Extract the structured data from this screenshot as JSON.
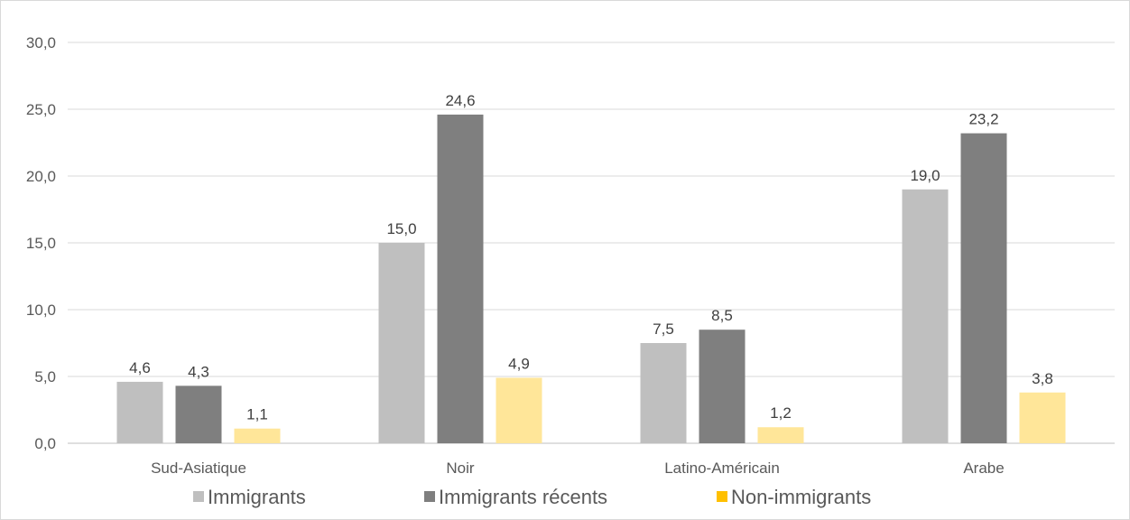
{
  "chart_data": {
    "type": "bar",
    "categories": [
      "Sud-Asiatique",
      "Noir",
      "Latino-Américain",
      "Arabe"
    ],
    "series": [
      {
        "name": "Immigrants",
        "values": [
          4.6,
          15.0,
          7.5,
          19.0
        ],
        "labels": [
          "4,6",
          "15,0",
          "7,5",
          "19,0"
        ],
        "color": "#bfbfbf"
      },
      {
        "name": "Immigrants récents",
        "values": [
          4.3,
          24.6,
          8.5,
          23.2
        ],
        "labels": [
          "4,3",
          "24,6",
          "8,5",
          "23,2"
        ],
        "color": "#7f7f7f"
      },
      {
        "name": "Non-immigrants",
        "values": [
          1.1,
          4.9,
          1.2,
          3.8
        ],
        "labels": [
          "1,1",
          "4,9",
          "1,2",
          "3,8"
        ],
        "color": "#ffe699"
      }
    ],
    "legend_swatch_colors": [
      "#bfbfbf",
      "#7f7f7f",
      "#ffc000"
    ],
    "ylim": [
      0,
      30
    ],
    "yticks": [
      0,
      5,
      10,
      15,
      20,
      25,
      30
    ],
    "ytick_labels": [
      "0,0",
      "5,0",
      "10,0",
      "15,0",
      "20,0",
      "25,0",
      "30,0"
    ],
    "grid": true,
    "legend_position": "bottom"
  }
}
